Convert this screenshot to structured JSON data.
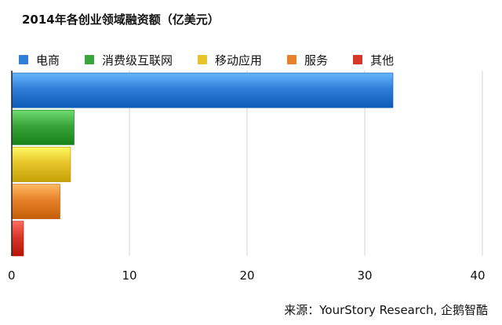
{
  "chart_data": {
    "type": "bar",
    "orientation": "horizontal",
    "title": "2014年各创业领域融资额（亿美元）",
    "categories": [
      "电商",
      "消费级互联网",
      "移动应用",
      "服务",
      "其他"
    ],
    "values": [
      32.4,
      5.3,
      5.0,
      4.1,
      1.0
    ],
    "colors": [
      "#2f7fd9",
      "#3aa53a",
      "#e6c42a",
      "#e8822a",
      "#d9362a"
    ],
    "xlim": [
      0,
      40
    ],
    "xticks": [
      "0",
      "10",
      "20",
      "30",
      "40"
    ],
    "grid": true,
    "legend_position": "top",
    "source": "来源：YourStory Research, 企鹅智酷"
  }
}
